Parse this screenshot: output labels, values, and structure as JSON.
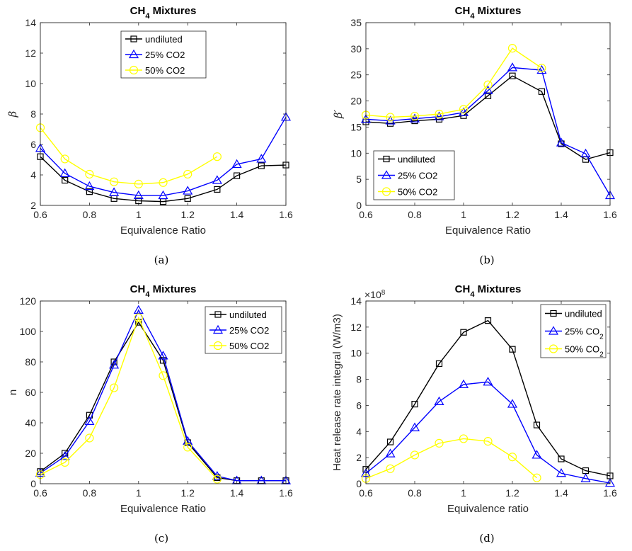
{
  "figure": {
    "captions": [
      "(a)",
      "(b)",
      "(c)",
      "(d)"
    ]
  },
  "chart_data": [
    {
      "type": "line",
      "title": "CH",
      "title_subscript": "4",
      "title_suffix": " Mixtures",
      "xlabel": "Equivalence Ratio",
      "ylabel": "β",
      "xlim": [
        0.6,
        1.6
      ],
      "ylim": [
        2,
        14
      ],
      "xticks": [
        0.6,
        0.8,
        1,
        1.2,
        1.4,
        1.6
      ],
      "yticks": [
        2,
        4,
        6,
        8,
        10,
        12,
        14
      ],
      "legend_position": "top-center",
      "series": [
        {
          "name": "undiluted",
          "color": "#000000",
          "marker": "square",
          "x": [
            0.6,
            0.7,
            0.8,
            0.9,
            1.0,
            1.1,
            1.2,
            1.32,
            1.4,
            1.5,
            1.6
          ],
          "y": [
            5.2,
            3.65,
            2.9,
            2.45,
            2.3,
            2.25,
            2.45,
            3.05,
            3.95,
            4.6,
            4.65
          ]
        },
        {
          "name": "25% CO2",
          "color": "#0000ff",
          "marker": "triangle",
          "x": [
            0.6,
            0.7,
            0.8,
            0.9,
            1.0,
            1.1,
            1.2,
            1.32,
            1.4,
            1.5,
            1.6
          ],
          "y": [
            5.75,
            4.1,
            3.25,
            2.85,
            2.65,
            2.65,
            2.95,
            3.65,
            4.7,
            5.05,
            7.8
          ]
        },
        {
          "name": "50% CO2",
          "color": "#ffff00",
          "marker": "circle",
          "x": [
            0.6,
            0.7,
            0.8,
            0.9,
            1.0,
            1.1,
            1.2,
            1.32
          ],
          "y": [
            7.1,
            5.05,
            4.05,
            3.55,
            3.4,
            3.5,
            4.05,
            5.2
          ]
        }
      ]
    },
    {
      "type": "line",
      "title": "CH",
      "title_subscript": "4",
      "title_suffix": " Mixtures",
      "xlabel": "Equivalence Ratio",
      "ylabel": "β′",
      "xlim": [
        0.6,
        1.6
      ],
      "ylim": [
        0,
        35
      ],
      "xticks": [
        0.6,
        0.8,
        1,
        1.2,
        1.4,
        1.6
      ],
      "yticks": [
        0,
        5,
        10,
        15,
        20,
        25,
        30,
        35
      ],
      "legend_position": "bottom-left",
      "series": [
        {
          "name": "undiluted",
          "color": "#000000",
          "marker": "square",
          "x": [
            0.6,
            0.7,
            0.8,
            0.9,
            1.0,
            1.1,
            1.2,
            1.32,
            1.4,
            1.5,
            1.6
          ],
          "y": [
            16,
            15.7,
            16.2,
            16.5,
            17.2,
            21,
            24.8,
            21.8,
            11.8,
            8.8,
            10.1
          ]
        },
        {
          "name": "25% CO2",
          "color": "#0000ff",
          "marker": "triangle",
          "x": [
            0.6,
            0.7,
            0.8,
            0.9,
            1.0,
            1.1,
            1.2,
            1.32,
            1.4,
            1.5,
            1.6
          ],
          "y": [
            16.5,
            16.2,
            16.6,
            17,
            17.8,
            22,
            26.4,
            25.9,
            12,
            9.9,
            1.9
          ]
        },
        {
          "name": "50% CO2",
          "color": "#ffff00",
          "marker": "circle",
          "x": [
            0.6,
            0.7,
            0.8,
            0.9,
            1.0,
            1.1,
            1.2,
            1.32
          ],
          "y": [
            17.3,
            16.9,
            17.1,
            17.5,
            18.4,
            23.1,
            30.1,
            26.3
          ]
        }
      ]
    },
    {
      "type": "line",
      "title": "CH",
      "title_subscript": "4",
      "title_suffix": " Mixtures",
      "xlabel": "Equivalence Ratio",
      "ylabel": "n",
      "xlim": [
        0.6,
        1.6
      ],
      "ylim": [
        0,
        120
      ],
      "xticks": [
        0.6,
        0.8,
        1,
        1.2,
        1.4,
        1.6
      ],
      "yticks": [
        0,
        20,
        40,
        60,
        80,
        100,
        120
      ],
      "legend_position": "top-right",
      "series": [
        {
          "name": "undiluted",
          "color": "#000000",
          "marker": "square",
          "x": [
            0.6,
            0.7,
            0.8,
            0.9,
            1.0,
            1.1,
            1.2,
            1.32,
            1.4,
            1.5,
            1.6
          ],
          "y": [
            8,
            20,
            45,
            80,
            106,
            81,
            27,
            4,
            2,
            2,
            2
          ]
        },
        {
          "name": "25% CO2",
          "color": "#0000ff",
          "marker": "triangle",
          "x": [
            0.6,
            0.7,
            0.8,
            0.9,
            1.0,
            1.1,
            1.2,
            1.32,
            1.4,
            1.5,
            1.6
          ],
          "y": [
            7,
            18,
            41,
            78,
            114,
            84,
            28,
            5,
            2,
            2,
            2
          ]
        },
        {
          "name": "50% CO2",
          "color": "#ffff00",
          "marker": "circle",
          "x": [
            0.6,
            0.7,
            0.8,
            0.9,
            1.0,
            1.1,
            1.2,
            1.32
          ],
          "y": [
            6,
            14,
            30,
            63,
            109,
            71,
            24,
            3
          ]
        }
      ]
    },
    {
      "type": "line",
      "title": "CH",
      "title_subscript": "4",
      "title_suffix": " Mixtures",
      "xlabel": "Equivalence ratio",
      "ylabel": "Heat release rate integral (W/m3)",
      "y_exponent_label": "×10",
      "y_exponent": "8",
      "xlim": [
        0.6,
        1.6
      ],
      "ylim": [
        0,
        14
      ],
      "xticks": [
        0.6,
        0.8,
        1,
        1.2,
        1.4,
        1.6
      ],
      "yticks": [
        0,
        2,
        4,
        6,
        8,
        10,
        12,
        14
      ],
      "legend_position": "top-right",
      "series": [
        {
          "name": "undiluted",
          "name_sub": "",
          "color": "#000000",
          "marker": "square",
          "x": [
            0.6,
            0.7,
            0.8,
            0.9,
            1.0,
            1.1,
            1.2,
            1.3,
            1.4,
            1.5,
            1.6
          ],
          "y": [
            1.1,
            3.2,
            6.1,
            9.2,
            11.6,
            12.5,
            10.3,
            4.5,
            1.9,
            1.0,
            0.6
          ]
        },
        {
          "name": "25% CO",
          "name_sub": "2",
          "color": "#0000ff",
          "marker": "triangle",
          "x": [
            0.6,
            0.7,
            0.8,
            0.9,
            1.0,
            1.1,
            1.2,
            1.3,
            1.4,
            1.5,
            1.6
          ],
          "y": [
            0.8,
            2.3,
            4.3,
            6.3,
            7.6,
            7.8,
            6.1,
            2.2,
            0.8,
            0.4,
            0.05
          ]
        },
        {
          "name": "50% CO",
          "name_sub": "2",
          "color": "#ffff00",
          "marker": "circle",
          "x": [
            0.6,
            0.7,
            0.8,
            0.9,
            1.0,
            1.1,
            1.2,
            1.3
          ],
          "y": [
            0.4,
            1.15,
            2.2,
            3.1,
            3.45,
            3.25,
            2.05,
            0.45
          ]
        }
      ]
    }
  ]
}
